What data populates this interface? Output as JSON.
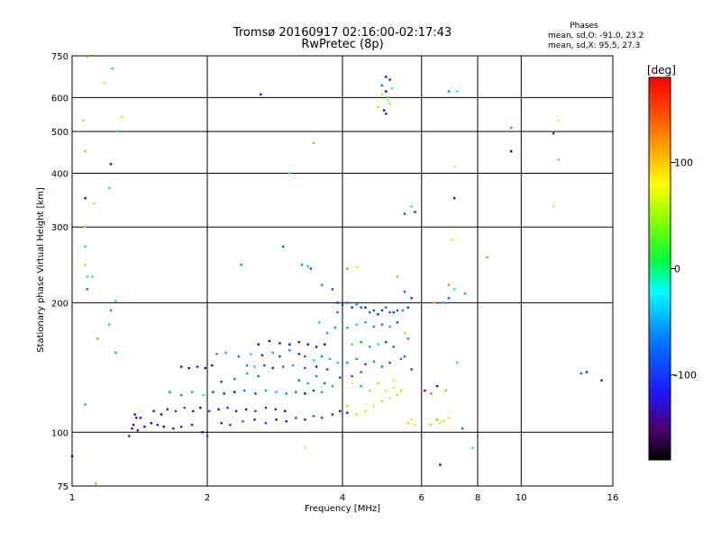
{
  "chart_data": {
    "type": "scatter",
    "title": "Tromsø 20160917 02:16:00-02:17:43",
    "subtitle": "RwPretec (8p)",
    "xlabel": "Frequency [MHz]",
    "ylabel": "Stationary phase Virtual Height [km]",
    "x_scale": "log",
    "y_scale": "log",
    "xlim": [
      1,
      16
    ],
    "ylim": [
      75,
      750
    ],
    "x_ticks": [
      1,
      2,
      4,
      6,
      8,
      10,
      16
    ],
    "y_ticks": [
      75,
      100,
      200,
      300,
      400,
      500,
      600,
      750
    ],
    "grid": true,
    "stats": {
      "header": "Phases",
      "line_o": "mean, sd,O: -91.0, 23.2",
      "line_x": "mean, sd,X:  95.5, 27.3"
    },
    "colorbar": {
      "label": "[deg]",
      "range": [
        -180,
        180
      ],
      "ticks": [
        100,
        0,
        -100
      ],
      "colormap": "rainbow"
    },
    "points": [
      [
        1.08,
        745,
        60
      ],
      [
        1.18,
        650,
        110
      ],
      [
        1.23,
        700,
        -20
      ],
      [
        1.06,
        530,
        80
      ],
      [
        1.26,
        500,
        -30
      ],
      [
        1.29,
        540,
        110
      ],
      [
        1.07,
        450,
        60
      ],
      [
        1.22,
        420,
        -150
      ],
      [
        1.07,
        350,
        -110
      ],
      [
        1.12,
        340,
        90
      ],
      [
        1.21,
        370,
        -20
      ],
      [
        1.07,
        300,
        80
      ],
      [
        1.07,
        270,
        -10
      ],
      [
        1.07,
        245,
        80
      ],
      [
        1.08,
        230,
        -30
      ],
      [
        1.11,
        230,
        -40
      ],
      [
        1.08,
        215,
        -80
      ],
      [
        1.14,
        165,
        140
      ],
      [
        1.22,
        192,
        -70
      ],
      [
        1.25,
        202,
        -40
      ],
      [
        1.25,
        153,
        -60
      ],
      [
        1.21,
        178,
        -50
      ],
      [
        1.07,
        116,
        -60
      ],
      [
        1.0,
        88,
        -110
      ],
      [
        1.13,
        76,
        130
      ],
      [
        1.42,
        108,
        -130
      ],
      [
        1.4,
        101,
        -130
      ],
      [
        1.45,
        103,
        -120
      ],
      [
        1.5,
        105,
        -140
      ],
      [
        1.55,
        104,
        -130
      ],
      [
        1.6,
        103,
        -110
      ],
      [
        1.68,
        102,
        -100
      ],
      [
        1.75,
        103,
        -100
      ],
      [
        1.85,
        104,
        -100
      ],
      [
        1.95,
        100,
        -110
      ],
      [
        1.34,
        98,
        -140
      ],
      [
        1.36,
        102,
        -150
      ],
      [
        1.38,
        110,
        -150
      ],
      [
        1.39,
        108,
        -140
      ],
      [
        1.37,
        104,
        -130
      ],
      [
        1.52,
        112,
        -120
      ],
      [
        1.58,
        110,
        -110
      ],
      [
        1.63,
        113,
        -100
      ],
      [
        1.7,
        112,
        -90
      ],
      [
        1.78,
        114,
        -80
      ],
      [
        1.86,
        112,
        -120
      ],
      [
        1.93,
        114,
        -110
      ],
      [
        2.02,
        112,
        -90
      ],
      [
        2.12,
        113,
        -110
      ],
      [
        2.22,
        114,
        -90
      ],
      [
        2.32,
        112,
        -100
      ],
      [
        2.44,
        113,
        -110
      ],
      [
        2.56,
        112,
        -90
      ],
      [
        2.7,
        114,
        -100
      ],
      [
        2.84,
        113,
        -100
      ],
      [
        2.98,
        112,
        -110
      ],
      [
        1.65,
        124,
        -70
      ],
      [
        1.75,
        122,
        -80
      ],
      [
        1.85,
        124,
        -60
      ],
      [
        1.96,
        122,
        -40
      ],
      [
        2.06,
        124,
        -90
      ],
      [
        2.18,
        123,
        -100
      ],
      [
        2.3,
        124,
        -110
      ],
      [
        2.42,
        125,
        -80
      ],
      [
        2.56,
        123,
        -90
      ],
      [
        2.7,
        125,
        -60
      ],
      [
        2.85,
        124,
        -50
      ],
      [
        3.0,
        123,
        -70
      ],
      [
        3.15,
        124,
        -80
      ],
      [
        3.3,
        123,
        -110
      ],
      [
        3.45,
        125,
        -90
      ],
      [
        3.6,
        124,
        -60
      ],
      [
        1.75,
        142,
        -120
      ],
      [
        1.82,
        141,
        -110
      ],
      [
        1.9,
        142,
        -100
      ],
      [
        1.98,
        141,
        -110
      ],
      [
        2.05,
        143,
        -120
      ],
      [
        2.15,
        131,
        -90
      ],
      [
        2.3,
        133,
        -70
      ],
      [
        2.45,
        137,
        -60
      ],
      [
        2.6,
        135,
        -80
      ],
      [
        2.1,
        152,
        -70
      ],
      [
        2.2,
        153,
        -60
      ],
      [
        2.35,
        150,
        -80
      ],
      [
        2.5,
        152,
        -40
      ],
      [
        2.65,
        151,
        -100
      ],
      [
        2.8,
        153,
        -60
      ],
      [
        2.9,
        150,
        -90
      ],
      [
        3.05,
        155,
        -70
      ],
      [
        3.2,
        152,
        -100
      ],
      [
        2.45,
        143,
        -70
      ],
      [
        2.55,
        142,
        -50
      ],
      [
        2.68,
        143,
        -90
      ],
      [
        2.8,
        141,
        -100
      ],
      [
        2.95,
        142,
        -80
      ],
      [
        3.1,
        143,
        -60
      ],
      [
        3.3,
        141,
        -90
      ],
      [
        3.5,
        142,
        -110
      ],
      [
        3.7,
        140,
        -90
      ],
      [
        2.6,
        160,
        -110
      ],
      [
        2.75,
        163,
        -120
      ],
      [
        2.9,
        161,
        -110
      ],
      [
        3.05,
        160,
        -120
      ],
      [
        3.2,
        162,
        -130
      ],
      [
        3.35,
        160,
        -120
      ],
      [
        3.5,
        158,
        -130
      ],
      [
        3.65,
        160,
        -110
      ],
      [
        2.0,
        98,
        -90
      ],
      [
        2.15,
        105,
        -100
      ],
      [
        2.25,
        104,
        -90
      ],
      [
        2.4,
        106,
        -80
      ],
      [
        2.55,
        107,
        -100
      ],
      [
        2.7,
        105,
        -90
      ],
      [
        2.85,
        107,
        -110
      ],
      [
        3.0,
        106,
        -100
      ],
      [
        3.15,
        108,
        -90
      ],
      [
        3.3,
        107,
        -100
      ],
      [
        3.45,
        109,
        -80
      ],
      [
        3.6,
        108,
        -90
      ],
      [
        3.8,
        110,
        -100
      ],
      [
        3.95,
        112,
        -110
      ],
      [
        4.1,
        111,
        -100
      ],
      [
        3.2,
        132,
        -80
      ],
      [
        3.35,
        130,
        -60
      ],
      [
        3.5,
        135,
        -70
      ],
      [
        3.65,
        130,
        -80
      ],
      [
        3.8,
        128,
        -60
      ],
      [
        3.95,
        134,
        -90
      ],
      [
        3.3,
        150,
        -80
      ],
      [
        3.45,
        147,
        -40
      ],
      [
        3.6,
        150,
        -70
      ],
      [
        3.75,
        148,
        -60
      ],
      [
        3.9,
        145,
        -50
      ],
      [
        3.7,
        170,
        -60
      ],
      [
        3.85,
        175,
        -70
      ],
      [
        3.9,
        190,
        -80
      ],
      [
        4.0,
        185,
        -60
      ],
      [
        3.55,
        180,
        -50
      ],
      [
        3.9,
        200,
        -100
      ],
      [
        4.0,
        198,
        -90
      ],
      [
        4.1,
        200,
        -80
      ],
      [
        4.2,
        195,
        -100
      ],
      [
        4.3,
        198,
        -70
      ],
      [
        4.4,
        195,
        -90
      ],
      [
        4.5,
        195,
        -100
      ],
      [
        4.6,
        190,
        -80
      ],
      [
        4.7,
        192,
        -90
      ],
      [
        4.8,
        188,
        -100
      ],
      [
        4.9,
        192,
        -90
      ],
      [
        5.0,
        195,
        -80
      ],
      [
        5.1,
        190,
        -90
      ],
      [
        5.2,
        190,
        -100
      ],
      [
        5.3,
        192,
        -90
      ],
      [
        5.45,
        192,
        -70
      ],
      [
        5.6,
        195,
        -90
      ],
      [
        5.7,
        205,
        -100
      ],
      [
        5.5,
        212,
        -80
      ],
      [
        4.1,
        175,
        -60
      ],
      [
        4.3,
        178,
        -50
      ],
      [
        4.5,
        180,
        -60
      ],
      [
        4.7,
        176,
        -70
      ],
      [
        4.9,
        178,
        -80
      ],
      [
        5.1,
        176,
        -60
      ],
      [
        5.3,
        180,
        -90
      ],
      [
        4.2,
        160,
        60
      ],
      [
        4.4,
        162,
        -70
      ],
      [
        4.6,
        158,
        -60
      ],
      [
        4.8,
        160,
        -40
      ],
      [
        5.0,
        162,
        -90
      ],
      [
        5.2,
        158,
        -80
      ],
      [
        4.1,
        145,
        -70
      ],
      [
        4.3,
        148,
        -60
      ],
      [
        4.5,
        144,
        -90
      ],
      [
        4.7,
        146,
        -70
      ],
      [
        4.9,
        142,
        -80
      ],
      [
        5.1,
        145,
        -90
      ],
      [
        5.4,
        148,
        -70
      ],
      [
        4.2,
        130,
        110
      ],
      [
        4.4,
        128,
        -60
      ],
      [
        4.6,
        125,
        120
      ],
      [
        4.8,
        130,
        90
      ],
      [
        5.0,
        125,
        100
      ],
      [
        5.2,
        127,
        110
      ],
      [
        4.1,
        115,
        120
      ],
      [
        4.3,
        110,
        120
      ],
      [
        4.5,
        112,
        100
      ],
      [
        4.7,
        115,
        110
      ],
      [
        4.9,
        118,
        90
      ],
      [
        5.1,
        120,
        110
      ],
      [
        5.3,
        122,
        80
      ],
      [
        5.4,
        125,
        120
      ],
      [
        4.2,
        135,
        -90
      ],
      [
        4.4,
        138,
        -80
      ],
      [
        5.2,
        132,
        100
      ],
      [
        5.6,
        165,
        -70
      ],
      [
        5.5,
        170,
        120
      ],
      [
        5.6,
        105,
        120
      ],
      [
        5.7,
        107,
        110
      ],
      [
        5.8,
        104,
        110
      ],
      [
        6.3,
        104,
        120
      ],
      [
        6.5,
        107,
        130
      ],
      [
        6.6,
        105,
        110
      ],
      [
        6.7,
        106,
        90
      ],
      [
        6.9,
        108,
        100
      ],
      [
        5.7,
        140,
        -90
      ],
      [
        5.5,
        150,
        -80
      ],
      [
        6.1,
        125,
        -140
      ],
      [
        6.3,
        123,
        150
      ],
      [
        6.5,
        128,
        -110
      ],
      [
        6.8,
        125,
        130
      ],
      [
        6.7,
        200,
        -60
      ],
      [
        6.9,
        205,
        -80
      ],
      [
        6.4,
        200,
        130
      ],
      [
        7.1,
        215,
        -40
      ],
      [
        7.5,
        210,
        -60
      ],
      [
        5.3,
        230,
        130
      ],
      [
        4.9,
        640,
        -80
      ],
      [
        5.0,
        620,
        -110
      ],
      [
        5.05,
        600,
        -20
      ],
      [
        5.1,
        580,
        80
      ],
      [
        4.95,
        560,
        -110
      ],
      [
        5.0,
        550,
        -130
      ],
      [
        5.1,
        660,
        -100
      ],
      [
        5.0,
        670,
        -110
      ],
      [
        4.9,
        610,
        110
      ],
      [
        5.05,
        590,
        110
      ],
      [
        4.8,
        570,
        80
      ],
      [
        5.15,
        630,
        -40
      ],
      [
        5.5,
        322,
        -90
      ],
      [
        5.8,
        325,
        -100
      ],
      [
        5.7,
        335,
        -40
      ],
      [
        2.63,
        610,
        -110
      ],
      [
        3.05,
        400,
        -30
      ],
      [
        3.45,
        470,
        130
      ],
      [
        3.25,
        245,
        -70
      ],
      [
        3.35,
        243,
        -60
      ],
      [
        3.4,
        240,
        -90
      ],
      [
        2.95,
        270,
        -80
      ],
      [
        2.38,
        245,
        -70
      ],
      [
        3.6,
        220,
        -60
      ],
      [
        3.8,
        215,
        -90
      ],
      [
        4.1,
        240,
        140
      ],
      [
        4.3,
        242,
        110
      ],
      [
        3.3,
        92,
        100
      ],
      [
        6.9,
        620,
        -70
      ],
      [
        7.2,
        620,
        -40
      ],
      [
        7.1,
        415,
        110
      ],
      [
        7.1,
        350,
        -130
      ],
      [
        7.0,
        280,
        110
      ],
      [
        7.8,
        92,
        -30
      ],
      [
        6.9,
        220,
        140
      ],
      [
        7.2,
        145,
        -40
      ],
      [
        8.4,
        255,
        140
      ],
      [
        9.5,
        510,
        -60
      ],
      [
        9.5,
        450,
        -110
      ],
      [
        11.8,
        495,
        -90
      ],
      [
        12.1,
        530,
        110
      ],
      [
        12.1,
        430,
        130
      ],
      [
        11.8,
        335,
        110
      ],
      [
        14.0,
        138,
        -100
      ],
      [
        13.6,
        137,
        -80
      ],
      [
        15.1,
        132,
        -120
      ],
      [
        6.6,
        84,
        -120
      ],
      [
        7.4,
        102,
        -80
      ]
    ]
  }
}
